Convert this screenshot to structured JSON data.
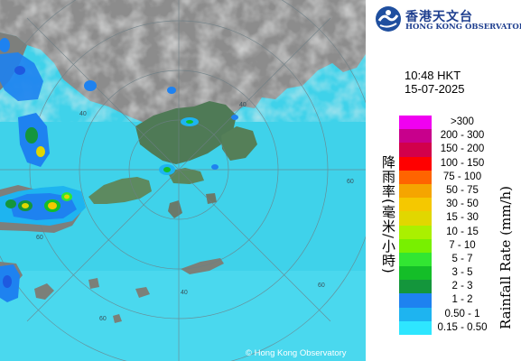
{
  "map": {
    "copyright": "© Hong Kong Observatory",
    "ring_labels": [
      "40",
      "40",
      "60",
      "60",
      "60",
      "60",
      "40"
    ]
  },
  "header": {
    "logo_cn": "香港天文台",
    "logo_en": "HONG KONG OBSERVATORY",
    "time": "10:48 HKT",
    "date": "15-07-2025"
  },
  "legend": {
    "title_cn": "降雨率(毫米/小時)",
    "title_en": "Rainfall Rate (mm/h)",
    "items": [
      {
        "label": ">300",
        "color": "#f000f0"
      },
      {
        "label": "200 - 300",
        "color": "#c8008c"
      },
      {
        "label": "150 - 200",
        "color": "#d2004b"
      },
      {
        "label": "100 - 150",
        "color": "#ff0000"
      },
      {
        "label": "75 - 100",
        "color": "#ff6400"
      },
      {
        "label": "50 - 75",
        "color": "#f5a500"
      },
      {
        "label": "30 - 50",
        "color": "#f5c800"
      },
      {
        "label": "15 - 30",
        "color": "#e1d700"
      },
      {
        "label": "10 - 15",
        "color": "#aaf000"
      },
      {
        "label": "7 - 10",
        "color": "#78f000"
      },
      {
        "label": "5 - 7",
        "color": "#32e632"
      },
      {
        "label": "3 - 5",
        "color": "#14be28"
      },
      {
        "label": "2 - 3",
        "color": "#14963c"
      },
      {
        "label": "1 - 2",
        "color": "#1e82f0"
      },
      {
        "label": "0.50 - 1",
        "color": "#1eb4f0"
      },
      {
        "label": "0.15 - 0.50",
        "color": "#2ee6ff"
      }
    ]
  }
}
